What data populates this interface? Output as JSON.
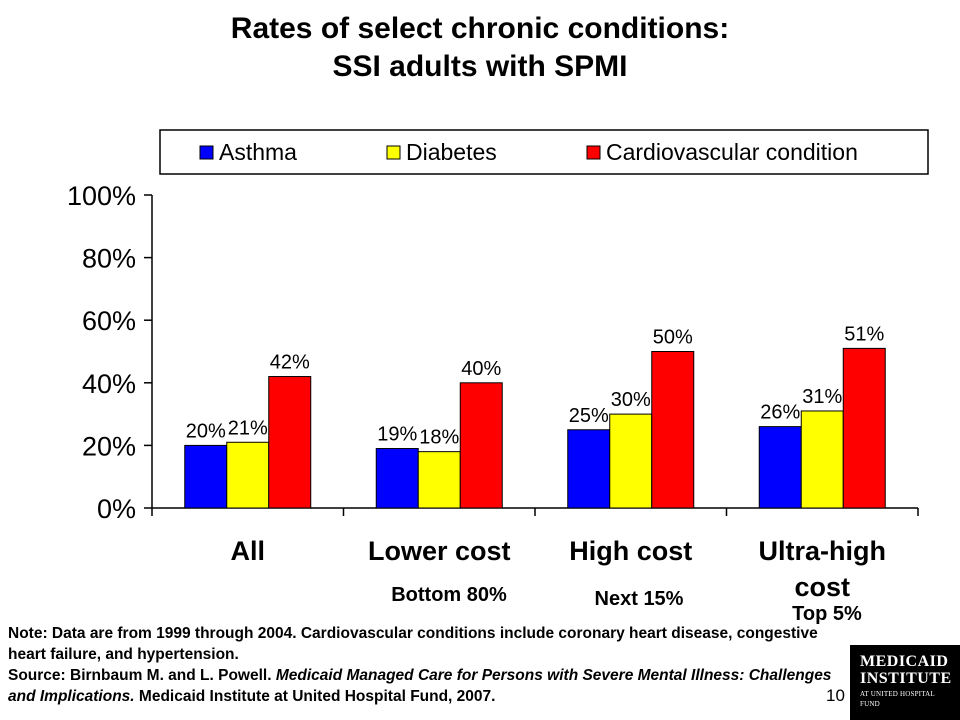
{
  "slide": {
    "title_line1": "Rates of select chronic conditions:",
    "title_line2": "SSI adults with SPMI",
    "page_number": "10"
  },
  "tiers": [
    "Bottom 80%",
    "Next 15%",
    "Top 5%"
  ],
  "notes": {
    "note": "Note:  Data are from 1999 through 2004.  Cardiovascular conditions include coronary heart disease, congestive heart failure, and hypertension.",
    "source_prefix": "Source:  Birnbaum M. and L. Powell.  ",
    "source_title": "Medicaid Managed Care for Persons with Severe Mental Illness: Challenges and Implications.",
    "source_suffix": "  Medicaid Institute at United Hospital Fund, 2007."
  },
  "logo": {
    "line1": "MEDICAID",
    "line2": "INSTITUTE",
    "line3": "AT UNITED HOSPITAL FUND"
  },
  "chart_data": {
    "type": "bar",
    "title": "",
    "xlabel": "",
    "ylabel": "",
    "categories": [
      "All",
      "Lower cost",
      "High cost",
      "Ultra-high cost"
    ],
    "series": [
      {
        "name": "Asthma",
        "color": "#0000FF",
        "values": [
          20,
          19,
          25,
          26
        ],
        "labels": [
          "20%",
          "19%",
          "25%",
          "26%"
        ]
      },
      {
        "name": "Diabetes",
        "color": "#FFFF00",
        "values": [
          21,
          18,
          30,
          31
        ],
        "labels": [
          "21%",
          "18%",
          "30%",
          "31%"
        ]
      },
      {
        "name": "Cardiovascular condition",
        "color": "#FF0000",
        "values": [
          42,
          40,
          50,
          51
        ],
        "labels": [
          "42%",
          "40%",
          "50%",
          "51%"
        ]
      }
    ],
    "ylim": [
      0,
      100
    ],
    "yticks": [
      0,
      20,
      40,
      60,
      80,
      100
    ],
    "ytick_labels": [
      "0%",
      "20%",
      "40%",
      "60%",
      "80%",
      "100%"
    ],
    "legend_position": "top",
    "grid": false
  }
}
